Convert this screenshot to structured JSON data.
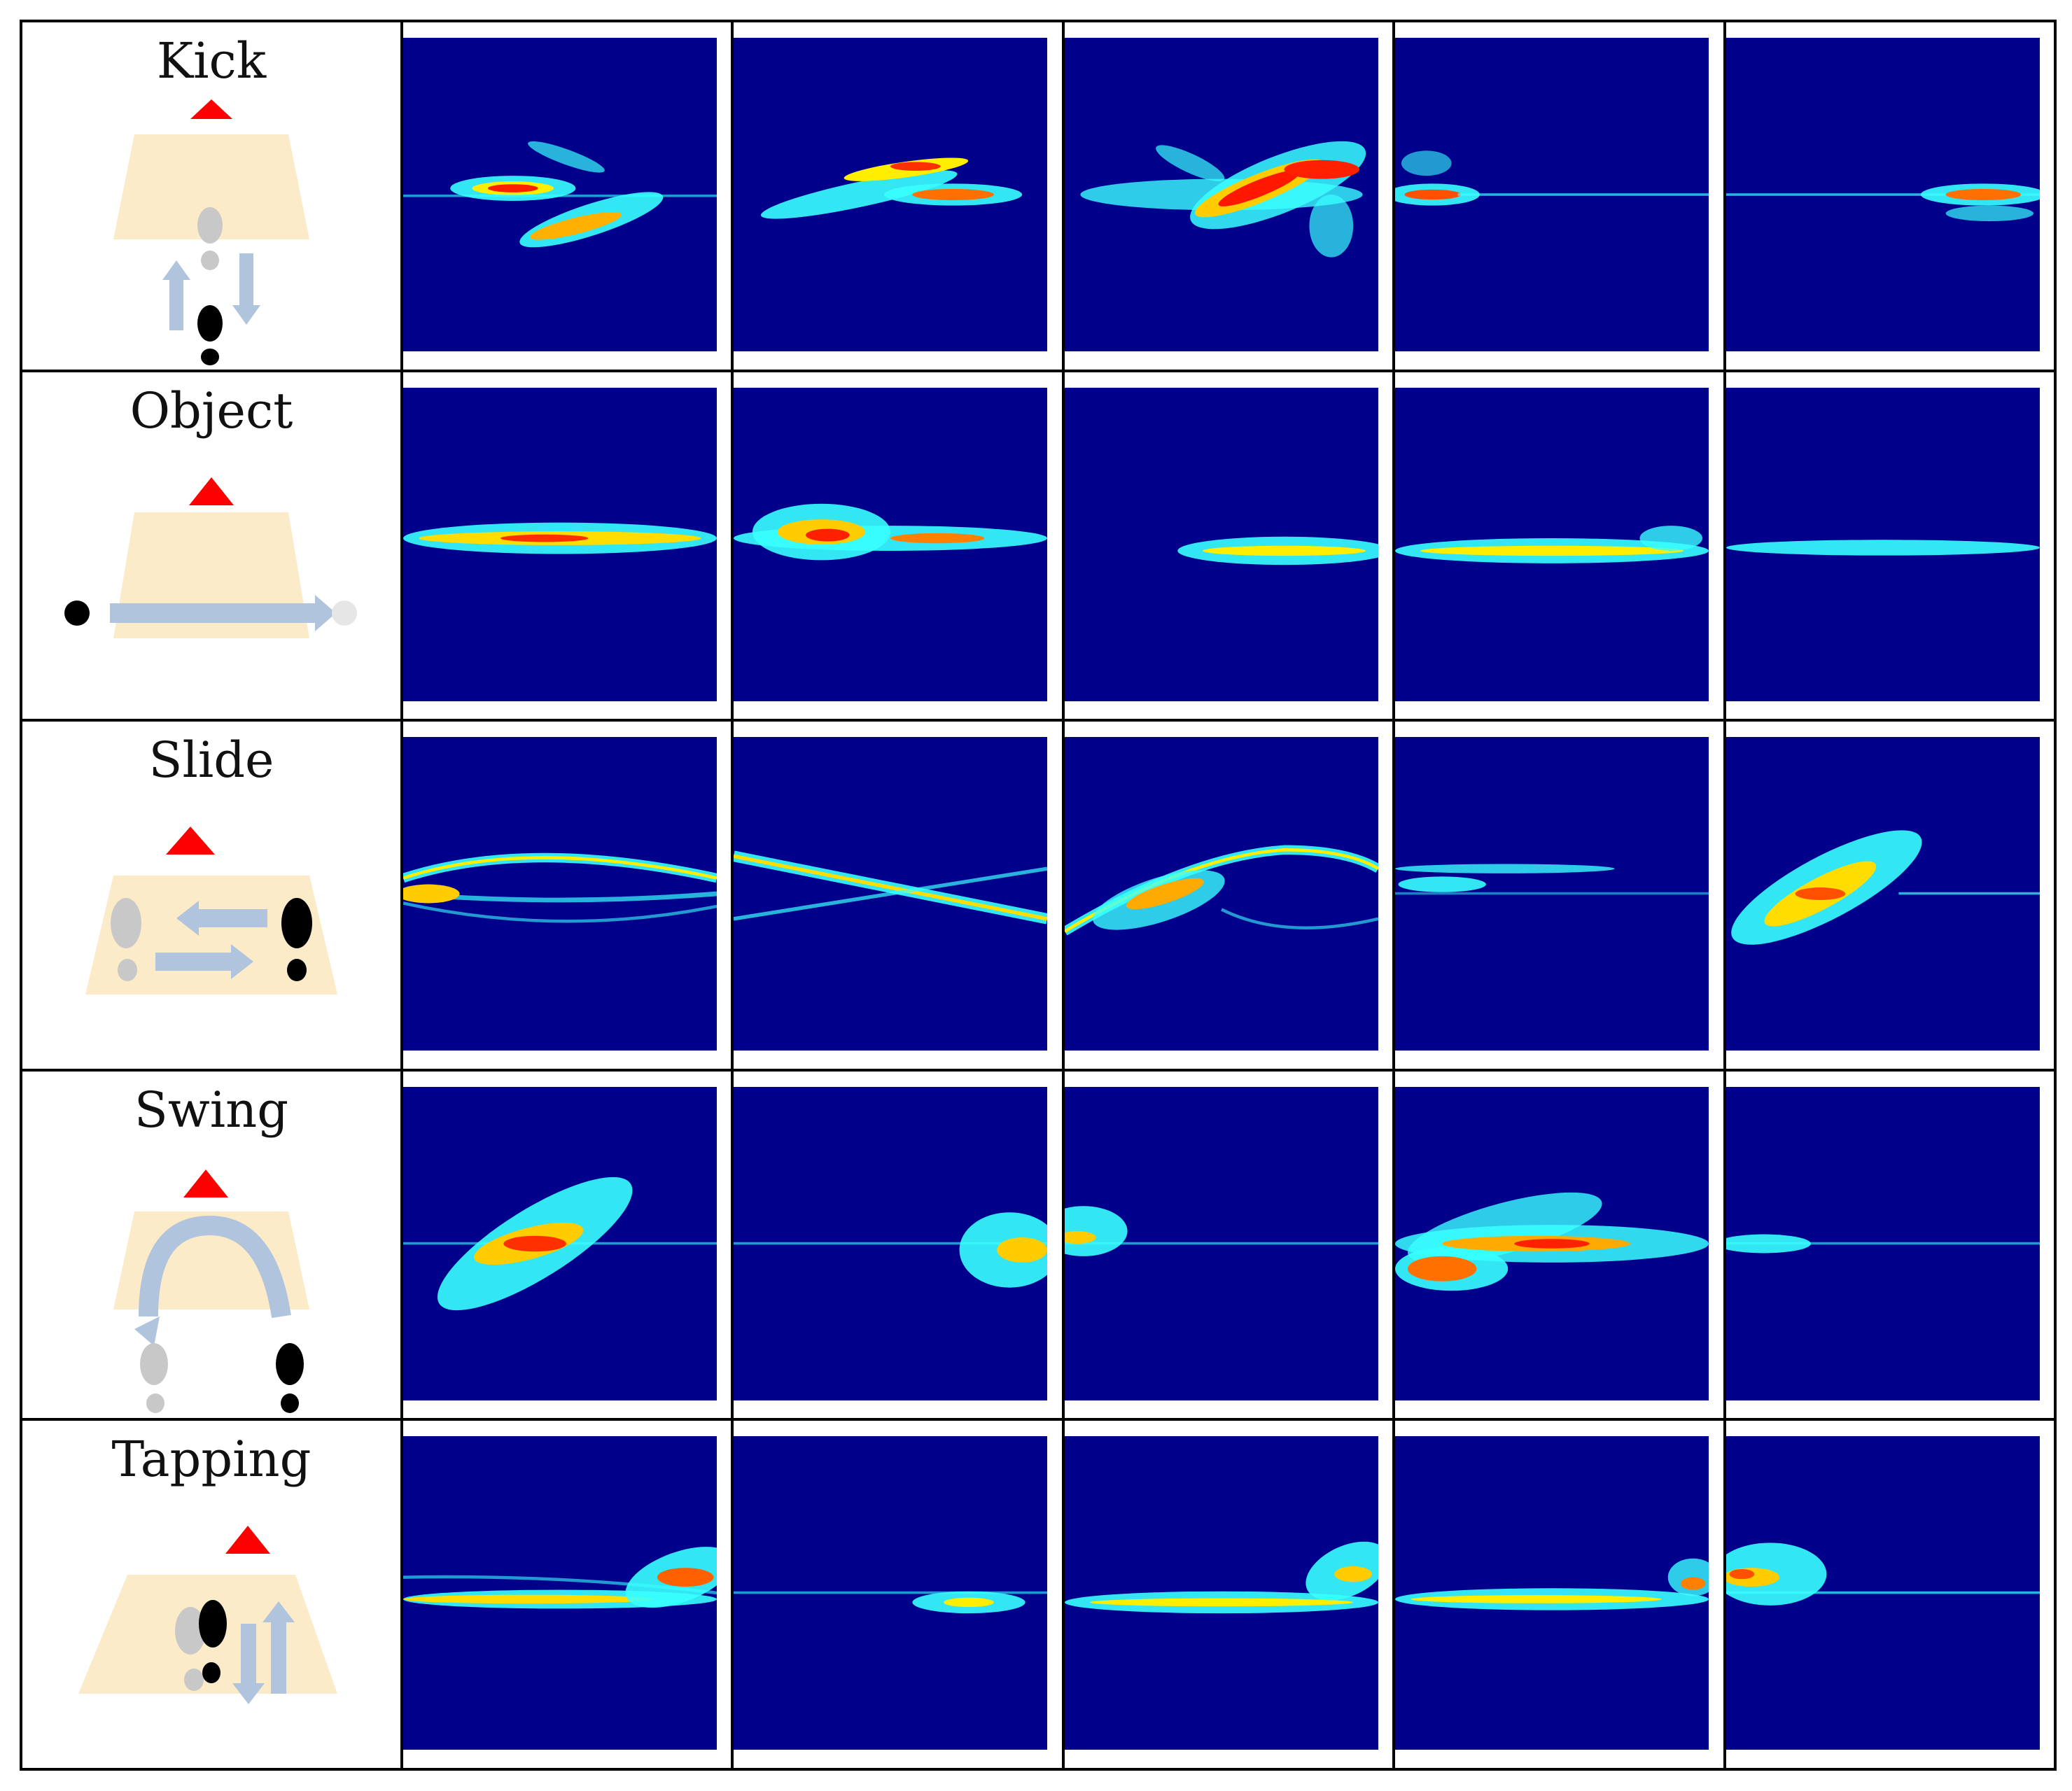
{
  "rows": [
    {
      "label": "Kick",
      "icon": "kick-gesture-icon"
    },
    {
      "label": "Object",
      "icon": "object-gesture-icon"
    },
    {
      "label": "Slide",
      "icon": "slide-gesture-icon"
    },
    {
      "label": "Swing",
      "icon": "swing-gesture-icon"
    },
    {
      "label": "Tapping",
      "icon": "tapping-gesture-icon"
    }
  ],
  "colors": {
    "background": "#00008b",
    "pad": "#fbebc9",
    "arrow": "#b0c4de",
    "marker": "#ff0000",
    "foot_dark": "#000000",
    "foot_light": "#c8c8c8"
  }
}
